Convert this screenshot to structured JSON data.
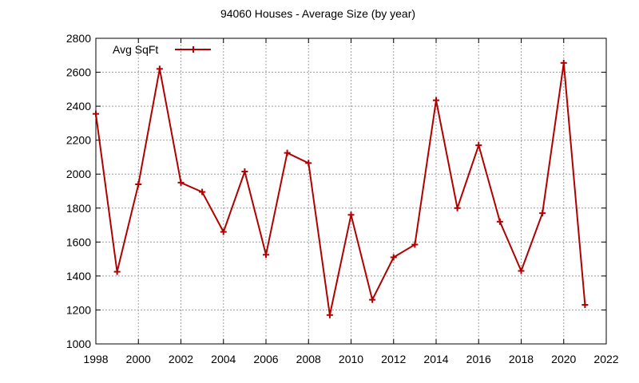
{
  "chart_data": {
    "type": "line",
    "title": "94060 Houses - Average Size (by year)",
    "xlabel": "",
    "ylabel": "",
    "xlim": [
      1998,
      2022
    ],
    "ylim": [
      1000,
      2800
    ],
    "x_ticks": [
      1998,
      2000,
      2002,
      2004,
      2006,
      2008,
      2010,
      2012,
      2014,
      2016,
      2018,
      2020,
      2022
    ],
    "y_ticks": [
      1000,
      1200,
      1400,
      1600,
      1800,
      2000,
      2200,
      2400,
      2600,
      2800
    ],
    "grid": true,
    "legend_position": "top-left",
    "series": [
      {
        "name": "Avg SqFt",
        "color": "#b00000",
        "x": [
          1998,
          1999,
          2000,
          2001,
          2002,
          2003,
          2004,
          2005,
          2006,
          2007,
          2008,
          2009,
          2010,
          2011,
          2012,
          2013,
          2014,
          2015,
          2016,
          2017,
          2018,
          2019,
          2020,
          2021
        ],
        "values": [
          2355,
          1425,
          1940,
          2620,
          1950,
          1895,
          1660,
          2015,
          1525,
          2125,
          2065,
          1170,
          1760,
          1260,
          1510,
          1585,
          2435,
          1800,
          2170,
          1720,
          1430,
          1770,
          2655,
          1230
        ]
      }
    ]
  }
}
